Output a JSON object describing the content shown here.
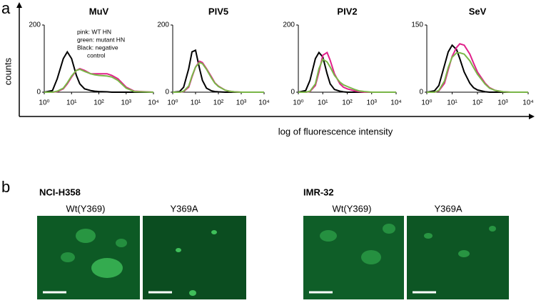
{
  "figure": {
    "panel_a": "a",
    "y_label": "counts",
    "x_label": "log of fluorescence intensity"
  },
  "micrographs": {
    "panel_b": "b",
    "groups": [
      {
        "cell_line": "NCI-H358",
        "conditions": [
          "Wt(Y369)",
          "Y369A"
        ]
      },
      {
        "cell_line": "IMR-32",
        "conditions": [
          "Wt(Y369)",
          "Y369A"
        ]
      }
    ]
  },
  "chart_data": [
    {
      "type": "line",
      "title": "MuV",
      "log_x": true,
      "annotation": [
        "pink: WT HN",
        "green: mutant HN",
        "Black: negative",
        "control"
      ],
      "x": [
        1,
        2,
        3,
        5,
        7,
        10,
        15,
        20,
        30,
        50,
        70,
        100,
        200,
        300,
        500,
        1000,
        2000,
        10000
      ],
      "xlim": [
        1,
        10000
      ],
      "xticks": [
        {
          "value": 1,
          "label": "10⁰"
        },
        {
          "value": 10,
          "label": "10¹"
        },
        {
          "value": 100,
          "label": "10²"
        },
        {
          "value": 1000,
          "label": "10³"
        },
        {
          "value": 10000,
          "label": "10⁴"
        }
      ],
      "ylim": [
        0,
        200
      ],
      "yticks": [
        0,
        200
      ],
      "series": [
        {
          "color": "#000000",
          "values": [
            0,
            5,
            40,
            100,
            120,
            100,
            50,
            25,
            10,
            5,
            3,
            2,
            1,
            0,
            0,
            0,
            0,
            0
          ]
        },
        {
          "color": "#e0218a",
          "values": [
            0,
            0,
            2,
            10,
            25,
            45,
            65,
            70,
            65,
            55,
            55,
            55,
            55,
            50,
            40,
            15,
            3,
            0
          ]
        },
        {
          "color": "#7ab648",
          "values": [
            0,
            0,
            3,
            12,
            28,
            48,
            65,
            68,
            62,
            55,
            52,
            50,
            48,
            45,
            35,
            12,
            2,
            0
          ]
        }
      ]
    },
    {
      "type": "line",
      "title": "PIV5",
      "log_x": true,
      "x": [
        1,
        2,
        3,
        5,
        7,
        10,
        15,
        20,
        30,
        50,
        70,
        100,
        200,
        300,
        500,
        1000,
        2000,
        10000
      ],
      "xlim": [
        1,
        10000
      ],
      "xticks": [
        {
          "value": 1,
          "label": "10⁰"
        },
        {
          "value": 10,
          "label": "10¹"
        },
        {
          "value": 100,
          "label": "10²"
        },
        {
          "value": 1000,
          "label": "10³"
        },
        {
          "value": 10000,
          "label": "10⁴"
        }
      ],
      "ylim": [
        0,
        200
      ],
      "yticks": [
        0,
        200
      ],
      "series": [
        {
          "color": "#000000",
          "values": [
            0,
            2,
            15,
            70,
            120,
            125,
            70,
            35,
            12,
            4,
            2,
            1,
            0,
            0,
            0,
            0,
            0,
            0
          ]
        },
        {
          "color": "#e0218a",
          "values": [
            0,
            0,
            2,
            15,
            45,
            75,
            92,
            88,
            70,
            45,
            28,
            18,
            6,
            3,
            1,
            0,
            0,
            0
          ]
        },
        {
          "color": "#7ab648",
          "values": [
            0,
            0,
            3,
            18,
            48,
            75,
            88,
            85,
            68,
            42,
            27,
            17,
            6,
            3,
            1,
            0,
            0,
            0
          ]
        }
      ]
    },
    {
      "type": "line",
      "title": "PIV2",
      "log_x": true,
      "x": [
        1,
        2,
        3,
        5,
        7,
        10,
        15,
        20,
        30,
        50,
        70,
        100,
        200,
        300,
        500,
        1000,
        2000,
        10000
      ],
      "xlim": [
        1,
        10000
      ],
      "xticks": [
        {
          "value": 1,
          "label": "10⁰"
        },
        {
          "value": 10,
          "label": "10¹"
        },
        {
          "value": 100,
          "label": "10²"
        },
        {
          "value": 1000,
          "label": "10³"
        },
        {
          "value": 10000,
          "label": "10⁴"
        }
      ],
      "ylim": [
        0,
        200
      ],
      "yticks": [
        0,
        200
      ],
      "series": [
        {
          "color": "#000000",
          "values": [
            0,
            5,
            35,
            100,
            118,
            105,
            55,
            25,
            8,
            3,
            1,
            0,
            0,
            0,
            0,
            0,
            0,
            0
          ]
        },
        {
          "color": "#e0218a",
          "values": [
            0,
            0,
            2,
            20,
            60,
            110,
            118,
            95,
            55,
            25,
            15,
            10,
            4,
            2,
            0,
            0,
            0,
            0
          ]
        },
        {
          "color": "#7ab648",
          "values": [
            0,
            0,
            3,
            25,
            70,
            98,
            90,
            75,
            50,
            30,
            22,
            17,
            8,
            4,
            2,
            0,
            0,
            0
          ]
        }
      ]
    },
    {
      "type": "line",
      "title": "SeV",
      "log_x": true,
      "x": [
        1,
        2,
        3,
        5,
        7,
        10,
        15,
        20,
        30,
        50,
        70,
        100,
        200,
        300,
        500,
        1000,
        2000,
        10000
      ],
      "xlim": [
        1,
        10000
      ],
      "xticks": [
        {
          "value": 1,
          "label": "10⁰"
        },
        {
          "value": 10,
          "label": "10¹"
        },
        {
          "value": 100,
          "label": "10²"
        },
        {
          "value": 1000,
          "label": "10³"
        },
        {
          "value": 10000,
          "label": "10⁴"
        }
      ],
      "ylim": [
        0,
        150
      ],
      "yticks": [
        0,
        150
      ],
      "series": [
        {
          "color": "#000000",
          "values": [
            0,
            3,
            15,
            60,
            90,
            105,
            95,
            75,
            45,
            20,
            10,
            5,
            1,
            0,
            0,
            0,
            0,
            0
          ]
        },
        {
          "color": "#e0218a",
          "values": [
            0,
            0,
            3,
            20,
            50,
            80,
            100,
            108,
            105,
            85,
            65,
            45,
            20,
            10,
            4,
            1,
            0,
            0
          ]
        },
        {
          "color": "#7ab648",
          "values": [
            0,
            0,
            4,
            25,
            55,
            78,
            88,
            88,
            85,
            70,
            55,
            40,
            18,
            9,
            4,
            1,
            0,
            0
          ]
        }
      ]
    }
  ]
}
